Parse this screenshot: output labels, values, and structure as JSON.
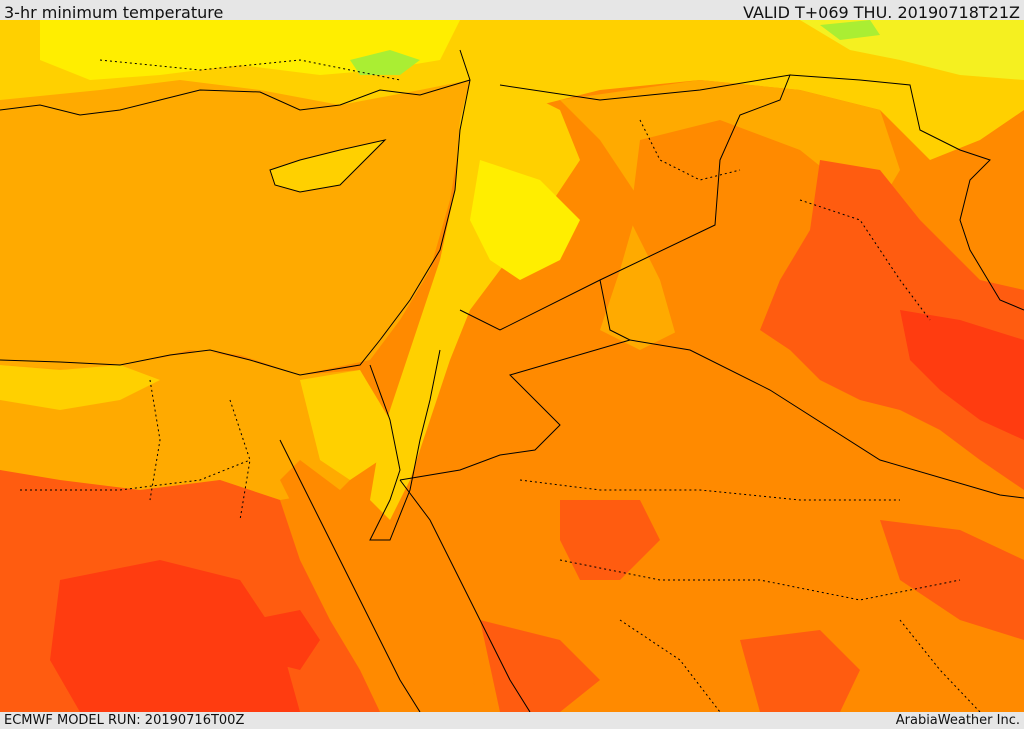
{
  "header": {
    "title": "3-hr minimum temperature",
    "valid": "VALID T+069 THU. 20190718T21Z"
  },
  "footer": {
    "model_run": "ECMWF MODEL RUN: 20190716T00Z",
    "credit": "ArabiaWeather Inc."
  },
  "map": {
    "region": "Eastern Mediterranean / Levant",
    "field": "3-hr minimum temperature",
    "legend_visible": false,
    "colors": {
      "sea": "#ffaa00",
      "very_hot": "#ff3c10",
      "hot": "#ff5c10",
      "warm_orange": "#ff8a00",
      "mild_orange": "#ffaa00",
      "yellow_orange": "#ffd000",
      "yellow": "#ffee00",
      "light_yellow": "#f5f020",
      "green": "#aaee33",
      "border": "#000000"
    }
  }
}
